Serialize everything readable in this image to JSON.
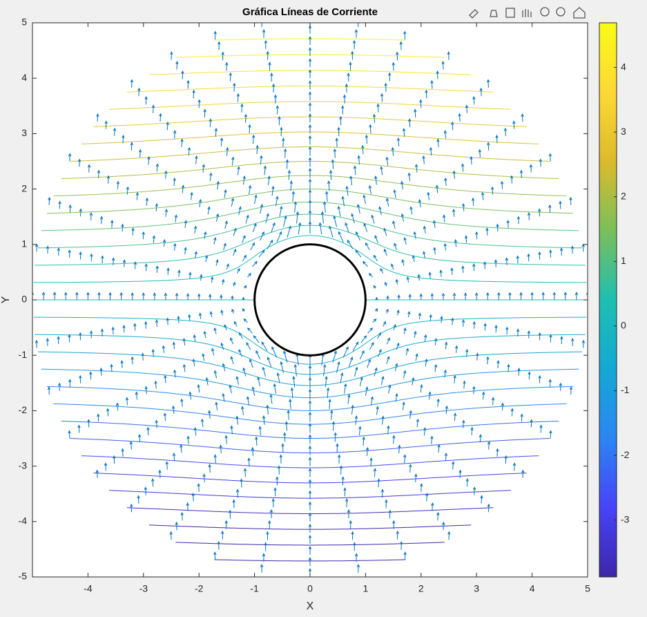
{
  "chart_data": {
    "type": "contour-quiver",
    "title": "Gráfica Líneas de Corriente",
    "x_label": "X",
    "y_label": "Y",
    "xlim": [
      -5,
      5
    ],
    "ylim": [
      -5,
      5
    ],
    "xticks": [
      -4,
      -3,
      -2,
      -1,
      0,
      1,
      2,
      3,
      4,
      5
    ],
    "yticks": [
      -5,
      -4,
      -3,
      -2,
      -1,
      0,
      1,
      2,
      3,
      4,
      5
    ],
    "cylinder_radius": 1,
    "outer_radius": 5,
    "contour_levels": [
      -4.5,
      -4.2,
      -3.9,
      -3.6,
      -3.3,
      -3.0,
      -2.7,
      -2.4,
      -2.1,
      -1.8,
      -1.5,
      -1.2,
      -0.9,
      -0.6,
      -0.3,
      0,
      0.3,
      0.6,
      0.9,
      1.2,
      1.5,
      1.8,
      2.1,
      2.4,
      2.7,
      3.0,
      3.3,
      3.6,
      3.9,
      4.2,
      4.5
    ],
    "quiver": {
      "color": "#0072bd",
      "radii": [
        1.2,
        1.4,
        1.6,
        1.8,
        2.0,
        2.2,
        2.4,
        2.6,
        2.8,
        3.0,
        3.2,
        3.4,
        3.6,
        3.8,
        4.0,
        4.2,
        4.4,
        4.6,
        4.8,
        5.0
      ],
      "angles": [
        0,
        10,
        20,
        30,
        40,
        50,
        60,
        70,
        80,
        90,
        100,
        110,
        120,
        130,
        140,
        150,
        160,
        170,
        180,
        190,
        200,
        210,
        220,
        230,
        240,
        250,
        260,
        270,
        280,
        290,
        300,
        310,
        320,
        330,
        340,
        350
      ]
    },
    "clim": [
      -3.88,
      4.69
    ],
    "colorbar_ticks": [
      -3,
      -2,
      -1,
      0,
      1,
      2,
      3,
      4
    ],
    "colormap": [
      "#3e26a8",
      "#4743f8",
      "#2c85f3",
      "#14a8d3",
      "#1ebfb1",
      "#7abf5b",
      "#dbbb2c",
      "#fdd836",
      "#f9fb15"
    ]
  }
}
